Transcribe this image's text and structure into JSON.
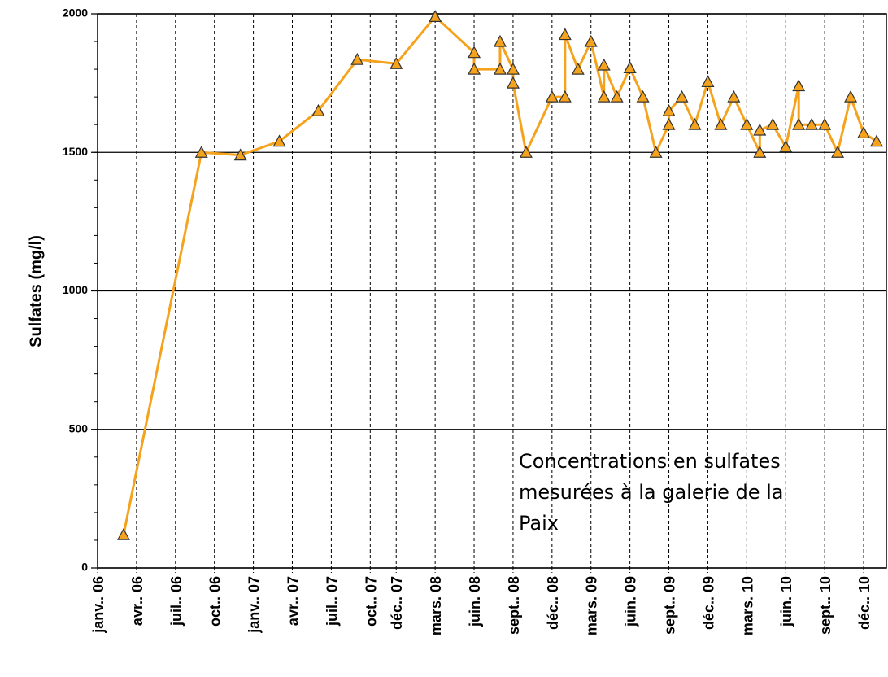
{
  "chart_data": {
    "type": "line",
    "ylabel": "Sulfates (mg/l)",
    "annotation": "Concentrations en sulfates mesurées à la galerie de la Paix",
    "x": [
      "2006-03",
      "2006-09",
      "2006-12",
      "2007-03",
      "2007-06",
      "2007-09",
      "2007-12",
      "2008-03",
      "2008-06",
      "2008-06",
      "2008-08",
      "2008-08",
      "2008-09",
      "2008-09",
      "2008-10",
      "2008-12",
      "2009-01",
      "2009-01",
      "2009-02",
      "2009-03",
      "2009-04",
      "2009-04",
      "2009-05",
      "2009-06",
      "2009-06",
      "2009-07",
      "2009-08",
      "2009-09",
      "2009-09",
      "2009-10",
      "2009-11",
      "2009-12",
      "2010-01",
      "2010-02",
      "2010-03",
      "2010-04",
      "2010-04",
      "2010-05",
      "2010-06",
      "2010-07",
      "2010-07",
      "2010-08",
      "2010-09",
      "2010-10",
      "2010-11",
      "2010-12",
      "2011-01"
    ],
    "series": [
      {
        "name": "Sulfates",
        "color": "#f5a21c",
        "values": [
          120,
          1500,
          1490,
          1540,
          1650,
          1835,
          1820,
          1990,
          1860,
          1800,
          1800,
          1900,
          1800,
          1750,
          1500,
          1700,
          1700,
          1925,
          1800,
          1900,
          1700,
          1815,
          1700,
          1805,
          1805,
          1700,
          1500,
          1600,
          1650,
          1700,
          1600,
          1755,
          1600,
          1700,
          1600,
          1500,
          1580,
          1600,
          1520,
          1740,
          1600,
          1600,
          1600,
          1500,
          1700,
          1570,
          1540
        ]
      }
    ],
    "xlim": [
      "2006-01",
      "2011-01"
    ],
    "xticks": [
      {
        "value": "2006-01",
        "label": "janv.. 06"
      },
      {
        "value": "2006-04",
        "label": "avr.. 06"
      },
      {
        "value": "2006-07",
        "label": "juil.. 06"
      },
      {
        "value": "2006-10",
        "label": "oct.. 06"
      },
      {
        "value": "2007-01",
        "label": "janv.. 07"
      },
      {
        "value": "2007-04",
        "label": "avr.. 07"
      },
      {
        "value": "2007-07",
        "label": "juil.. 07"
      },
      {
        "value": "2007-10",
        "label": "oct.. 07"
      },
      {
        "value": "2007-12",
        "label": "déc.. 07"
      },
      {
        "value": "2008-03",
        "label": "mars. 08"
      },
      {
        "value": "2008-06",
        "label": "juin. 08"
      },
      {
        "value": "2008-09",
        "label": "sept.. 08"
      },
      {
        "value": "2008-12",
        "label": "déc.. 08"
      },
      {
        "value": "2009-03",
        "label": "mars. 09"
      },
      {
        "value": "2009-06",
        "label": "juin. 09"
      },
      {
        "value": "2009-09",
        "label": "sept.. 09"
      },
      {
        "value": "2009-12",
        "label": "déc.. 09"
      },
      {
        "value": "2010-03",
        "label": "mars. 10"
      },
      {
        "value": "2010-06",
        "label": "juin. 10"
      },
      {
        "value": "2010-09",
        "label": "sept.. 10"
      },
      {
        "value": "2010-12",
        "label": "déc.. 10"
      }
    ],
    "ylim": [
      0,
      2000
    ],
    "yticks": [
      0,
      500,
      1000,
      1500,
      2000
    ],
    "grid": true
  }
}
